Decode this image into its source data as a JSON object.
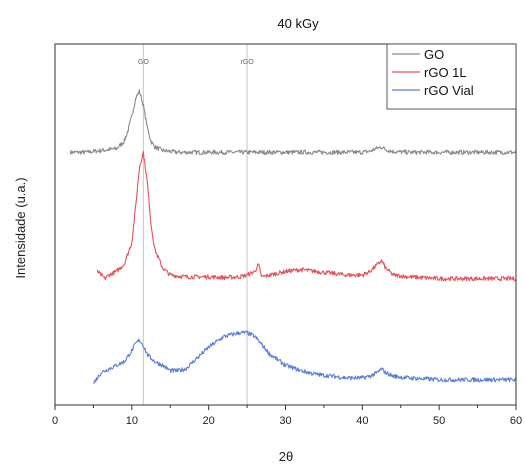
{
  "chart_data": {
    "type": "line",
    "title": "40 kGy",
    "xlabel": "2θ",
    "ylabel": "Intensidade (u.a.)",
    "xlim": [
      0,
      60
    ],
    "x_ticks": [
      0,
      10,
      20,
      30,
      40,
      50,
      60
    ],
    "x_tick_labels": [
      "0",
      "10",
      "20",
      "30",
      "40",
      "50",
      "60"
    ],
    "y_ticks": [],
    "legend_position": "top-right",
    "reference_lines": [
      {
        "label": "GO",
        "x": 11.5,
        "color": "#c6c6c6"
      },
      {
        "label": "rGO",
        "x": 25.0,
        "color": "#c6c6c6"
      }
    ],
    "series": [
      {
        "name": "GO",
        "color": "#8a8a8a",
        "x": [
          2,
          4,
          6,
          8,
          9,
          9.5,
          10,
          10.5,
          11,
          11.5,
          12,
          12.5,
          13,
          14,
          16,
          20,
          25,
          30,
          35,
          40,
          41,
          42,
          42.5,
          43,
          44,
          46,
          50,
          55,
          60
        ],
        "y": [
          0.7,
          0.7,
          0.705,
          0.71,
          0.73,
          0.76,
          0.8,
          0.85,
          0.87,
          0.83,
          0.77,
          0.73,
          0.715,
          0.705,
          0.7,
          0.7,
          0.7,
          0.7,
          0.7,
          0.7,
          0.703,
          0.712,
          0.715,
          0.708,
          0.702,
          0.7,
          0.7,
          0.7,
          0.7
        ]
      },
      {
        "name": "rGO 1L",
        "color": "#e8505b",
        "x": [
          5.5,
          6,
          6.5,
          7,
          8,
          9,
          10,
          10.5,
          11,
          11.5,
          12,
          12.5,
          13,
          14,
          15,
          17,
          20,
          22,
          24,
          25,
          26,
          26.5,
          26.8,
          27,
          28,
          30,
          32,
          34,
          36,
          38,
          40,
          41,
          42,
          42.5,
          43,
          44,
          46,
          50,
          55,
          60
        ],
        "y": [
          0.37,
          0.36,
          0.35,
          0.36,
          0.37,
          0.39,
          0.45,
          0.55,
          0.66,
          0.7,
          0.62,
          0.5,
          0.43,
          0.38,
          0.36,
          0.355,
          0.355,
          0.353,
          0.355,
          0.36,
          0.37,
          0.39,
          0.36,
          0.355,
          0.36,
          0.37,
          0.375,
          0.37,
          0.365,
          0.36,
          0.36,
          0.37,
          0.39,
          0.4,
          0.38,
          0.36,
          0.355,
          0.35,
          0.35,
          0.35
        ]
      },
      {
        "name": "rGO Vial",
        "color": "#5b7fd6",
        "x": [
          5,
          6,
          7,
          8,
          9,
          10,
          10.5,
          11,
          11.5,
          12,
          13,
          14,
          15,
          16,
          17,
          18,
          20,
          22,
          24,
          25,
          26,
          27,
          28,
          30,
          32,
          34,
          36,
          38,
          40,
          41,
          42,
          42.5,
          43,
          44,
          46,
          50,
          55,
          60
        ],
        "y": [
          0.06,
          0.09,
          0.1,
          0.11,
          0.12,
          0.15,
          0.17,
          0.18,
          0.165,
          0.14,
          0.12,
          0.11,
          0.095,
          0.095,
          0.1,
          0.12,
          0.16,
          0.19,
          0.2,
          0.2,
          0.19,
          0.165,
          0.14,
          0.11,
          0.095,
          0.085,
          0.08,
          0.075,
          0.075,
          0.08,
          0.09,
          0.1,
          0.09,
          0.08,
          0.075,
          0.07,
          0.07,
          0.07
        ]
      }
    ]
  }
}
